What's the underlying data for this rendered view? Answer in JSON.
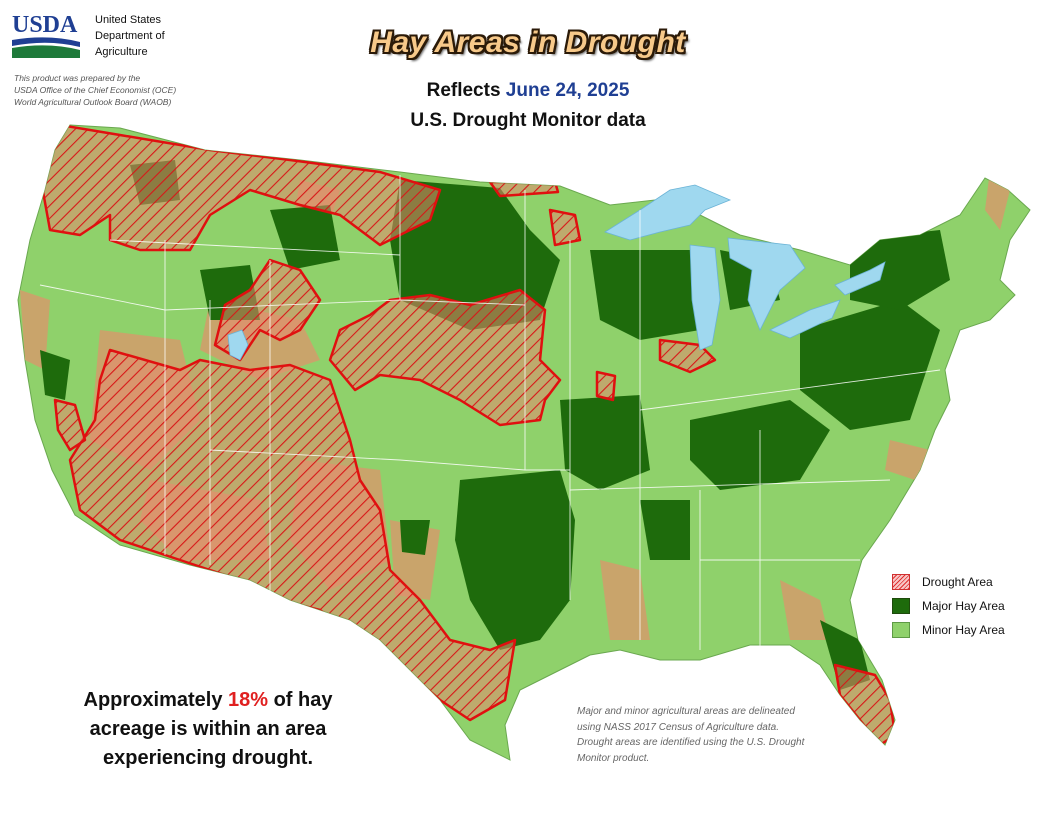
{
  "header": {
    "logo_text": "USDA",
    "agency_lines": [
      "United States",
      "Department of",
      "Agriculture"
    ],
    "prepared_lines": [
      "This product was prepared by the",
      "USDA Office of the Chief Economist (OCE)",
      "World Agricultural Outlook Board (WAOB)"
    ],
    "title": "Hay Areas in Drought",
    "reflects_label": "Reflects",
    "date": "June 24, 2025",
    "subtitle": "U.S. Drought Monitor data"
  },
  "legend": {
    "items": [
      {
        "label": "Drought Area",
        "key": "drought"
      },
      {
        "label": "Major Hay Area",
        "key": "major"
      },
      {
        "label": "Minor Hay Area",
        "key": "minor"
      }
    ]
  },
  "statement": {
    "prefix": "Approximately ",
    "percent": "18%",
    "suffix": " of hay acreage is within an area experiencing drought."
  },
  "note": "Major and minor agricultural areas are delineated using NASS 2017 Census of Agriculture data.  Drought areas are identified using the U.S. Drought Monitor product.",
  "colors": {
    "major_hay": "#1e6b0c",
    "minor_hay": "#8fd16b",
    "non_ag": "#c9a46b",
    "drought_outline": "#e01010",
    "water": "#9fd8ef",
    "title_fill": "#f7c98a"
  }
}
